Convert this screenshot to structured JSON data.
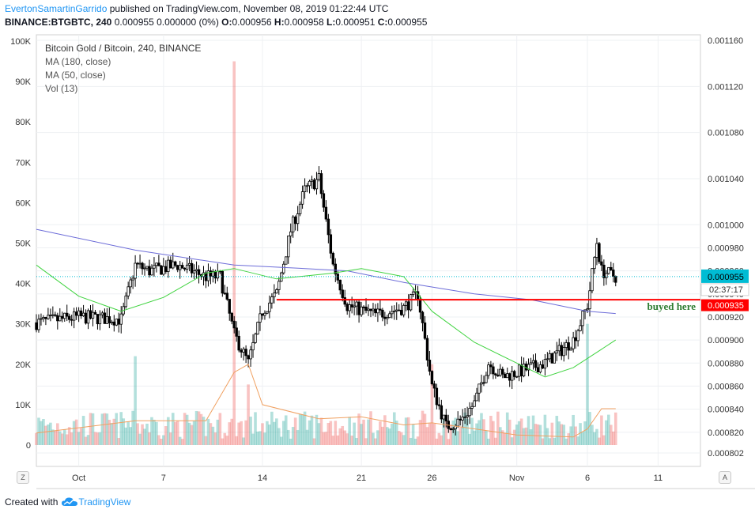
{
  "header": {
    "author": "EvertonSamartinGarrido",
    "published": " published on TradingView.com, November 08, 2019 01:22:44 UTC",
    "symbol": "BINANCE:BTGBTC, 240",
    "ohlc": {
      "o_label": "O:",
      "o": "0.000956",
      "h_label": "H:",
      "h": "0.000958",
      "l_label": "L:",
      "l": "0.000951",
      "c_label": "C:",
      "c": "0.000955",
      "change": "0.000955 0.000000 (0%)"
    }
  },
  "legend": {
    "main": "Bitcoin Gold / Bitcoin, 240, BINANCE",
    "ma1": "MA (180, close)",
    "ma2": "MA (50, close)",
    "vol": "Vol (13)"
  },
  "footer": {
    "created_with": "Created with",
    "brand": "TradingView"
  },
  "corner": {
    "left": "Z",
    "right": "A"
  },
  "colors": {
    "up": "#26a69a",
    "down": "#ef5350",
    "candle": "#000000",
    "ma180": "#6c6cd8",
    "ma50": "#3fd33f",
    "vol_ma": "#f0a060",
    "price_line": "#00bcd4",
    "support": "#ff0000",
    "annotation": "#2e7d32"
  },
  "chart_data": {
    "type": "candlestick",
    "title": "Bitcoin Gold / Bitcoin, 240, BINANCE",
    "price_axis": {
      "ticks": [
        0.00116,
        0.00112,
        0.00108,
        0.00104,
        0.001,
        0.00098,
        0.00096,
        0.00094,
        0.00092,
        0.0009,
        0.00088,
        0.00086,
        0.00084,
        0.00082,
        0.000802
      ],
      "tick_labels": [
        "0.001160",
        "0.001120",
        "0.001080",
        "0.001040",
        "0.001000",
        "0.000980",
        "0.000960",
        "0.000940",
        "0.000920",
        "0.000900",
        "0.000880",
        "0.000860",
        "0.000840",
        "0.000820",
        "0.000802"
      ]
    },
    "volume_axis": {
      "ticks": [
        0,
        10000,
        20000,
        30000,
        40000,
        50000,
        60000,
        70000,
        80000,
        90000,
        100000
      ],
      "tick_labels": [
        "0",
        "10K",
        "20K",
        "30K",
        "40K",
        "50K",
        "60K",
        "70K",
        "80K",
        "90K",
        "100K"
      ]
    },
    "x_axis": {
      "tick_labels": [
        "Oct",
        "7",
        "14",
        "21",
        "26",
        "Nov",
        "6",
        "11"
      ],
      "tick_dates": [
        "2019-10-01",
        "2019-10-07",
        "2019-10-14",
        "2019-10-21",
        "2019-10-26",
        "2019-11-01",
        "2019-11-06",
        "2019-11-11"
      ],
      "range": [
        "2019-09-28",
        "2019-11-14"
      ]
    },
    "grid": true,
    "last_price": {
      "value": 0.000955,
      "label": "0.000955",
      "countdown": "02:37:17"
    },
    "support_line": {
      "value": 0.000935,
      "label": "0.000935",
      "annotation": "buyed here",
      "from": "2019-10-15",
      "to": "2019-11-14"
    },
    "price_path": [
      [
        "2019-09-28",
        0.000915
      ],
      [
        "2019-10-01",
        0.00092
      ],
      [
        "2019-10-04",
        0.000918
      ],
      [
        "2019-10-05",
        0.000965
      ],
      [
        "2019-10-06",
        0.00096
      ],
      [
        "2019-10-08",
        0.000965
      ],
      [
        "2019-10-10",
        0.000955
      ],
      [
        "2019-10-11",
        0.000955
      ],
      [
        "2019-10-12",
        0.000905
      ],
      [
        "2019-10-13",
        0.00088
      ],
      [
        "2019-10-14",
        0.000925
      ],
      [
        "2019-10-15",
        0.00094
      ],
      [
        "2019-10-16",
        0.000995
      ],
      [
        "2019-10-17",
        0.00103
      ],
      [
        "2019-10-18",
        0.00104
      ],
      [
        "2019-10-19",
        0.000965
      ],
      [
        "2019-10-20",
        0.00093
      ],
      [
        "2019-10-22",
        0.000922
      ],
      [
        "2019-10-24",
        0.000928
      ],
      [
        "2019-10-25",
        0.00094
      ],
      [
        "2019-10-26",
        0.00086
      ],
      [
        "2019-10-27",
        0.000825
      ],
      [
        "2019-10-28",
        0.00083
      ],
      [
        "2019-10-29",
        0.000845
      ],
      [
        "2019-10-30",
        0.00088
      ],
      [
        "2019-10-31",
        0.000868
      ],
      [
        "2019-11-01",
        0.000872
      ],
      [
        "2019-11-03",
        0.00088
      ],
      [
        "2019-11-05",
        0.0009
      ],
      [
        "2019-11-06",
        0.00093
      ],
      [
        "2019-11-06T16",
        0.000985
      ],
      [
        "2019-11-07",
        0.00096
      ],
      [
        "2019-11-08",
        0.000955
      ]
    ],
    "series": [
      {
        "name": "MA (180, close)",
        "points": [
          [
            "2019-09-28",
            0.000996
          ],
          [
            "2019-10-05",
            0.000978
          ],
          [
            "2019-10-12",
            0.000965
          ],
          [
            "2019-10-17",
            0.000962
          ],
          [
            "2019-10-20",
            0.00096
          ],
          [
            "2019-10-24",
            0.00095
          ],
          [
            "2019-10-29",
            0.00094
          ],
          [
            "2019-11-02",
            0.000935
          ],
          [
            "2019-11-06",
            0.000925
          ],
          [
            "2019-11-08",
            0.000923
          ]
        ]
      },
      {
        "name": "MA (50, close)",
        "points": [
          [
            "2019-09-28",
            0.000965
          ],
          [
            "2019-10-01",
            0.000938
          ],
          [
            "2019-10-04",
            0.000925
          ],
          [
            "2019-10-07",
            0.000937
          ],
          [
            "2019-10-10",
            0.000958
          ],
          [
            "2019-10-12",
            0.000962
          ],
          [
            "2019-10-15",
            0.000953
          ],
          [
            "2019-10-19",
            0.000958
          ],
          [
            "2019-10-21",
            0.000962
          ],
          [
            "2019-10-24",
            0.000955
          ],
          [
            "2019-10-26",
            0.000925
          ],
          [
            "2019-10-29",
            0.000898
          ],
          [
            "2019-11-01",
            0.00088
          ],
          [
            "2019-11-03",
            0.000868
          ],
          [
            "2019-11-05",
            0.000876
          ],
          [
            "2019-11-07",
            0.000892
          ],
          [
            "2019-11-08",
            0.0009
          ]
        ]
      },
      {
        "name": "Vol (13)",
        "points": [
          [
            "2019-09-28",
            3000
          ],
          [
            "2019-10-05",
            6000
          ],
          [
            "2019-10-10",
            6000
          ],
          [
            "2019-10-12",
            18000
          ],
          [
            "2019-10-13",
            20000
          ],
          [
            "2019-10-14",
            10000
          ],
          [
            "2019-10-18",
            6500
          ],
          [
            "2019-10-21",
            7000
          ],
          [
            "2019-10-24",
            5000
          ],
          [
            "2019-10-26",
            5500
          ],
          [
            "2019-11-01",
            2500
          ],
          [
            "2019-11-05",
            2000
          ],
          [
            "2019-11-06",
            4000
          ],
          [
            "2019-11-07",
            9000
          ],
          [
            "2019-11-08",
            9000
          ]
        ]
      }
    ],
    "volume_spikes": [
      [
        "2019-10-05",
        22000
      ],
      [
        "2019-10-12",
        95000
      ],
      [
        "2019-10-13",
        15000
      ],
      [
        "2019-10-26",
        20000
      ],
      [
        "2019-11-06",
        30000
      ]
    ]
  }
}
